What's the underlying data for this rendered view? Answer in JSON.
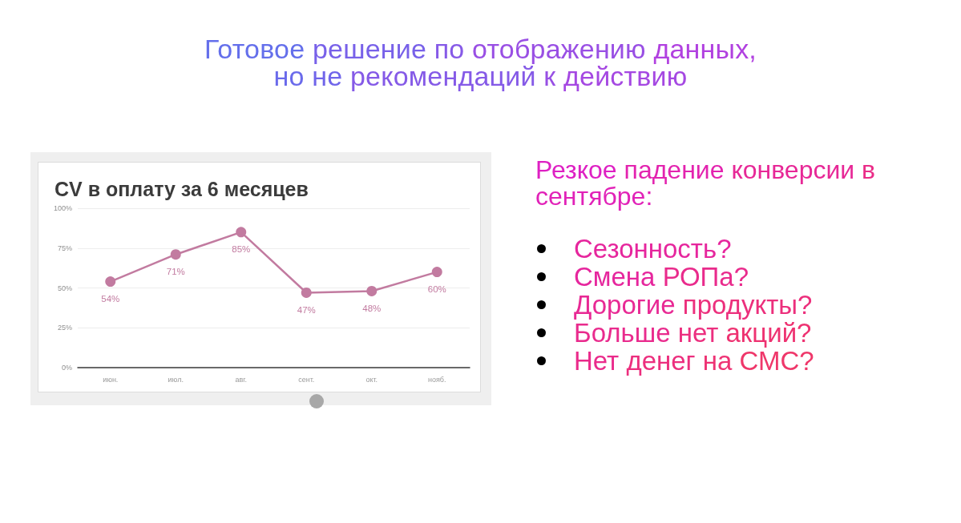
{
  "chart_data": [
    {
      "type": "other",
      "title": "Готовое решение по отображению данных,\nно не рекомендаций к действию"
    },
    {
      "type": "line",
      "title": "CV в оплату за 6 месяцев",
      "categories": [
        "июн.",
        "июл.",
        "авг.",
        "сент.",
        "окт.",
        "нояб."
      ],
      "values": [
        54,
        71,
        85,
        47,
        48,
        60
      ],
      "value_labels": [
        "54%",
        "71%",
        "85%",
        "47%",
        "48%",
        "60%"
      ],
      "color": "#c27ba0",
      "ylim": [
        0,
        100
      ],
      "yticks": [
        {
          "value": 0,
          "label": "0%"
        },
        {
          "value": 25,
          "label": "25%"
        },
        {
          "value": 50,
          "label": "50%"
        },
        {
          "value": 75,
          "label": "75%"
        },
        {
          "value": 100,
          "label": "100%"
        }
      ],
      "grid": "y",
      "marker": "circle",
      "line_style": "solid"
    },
    {
      "type": "other",
      "title": "Резкое падение конверсии в сентябре:",
      "annotations": [
        "Сезонность?",
        "Смена РОПа?",
        "Дорогие продукты?",
        "Больше нет акций?",
        "Нет денег на СМС?"
      ]
    }
  ]
}
